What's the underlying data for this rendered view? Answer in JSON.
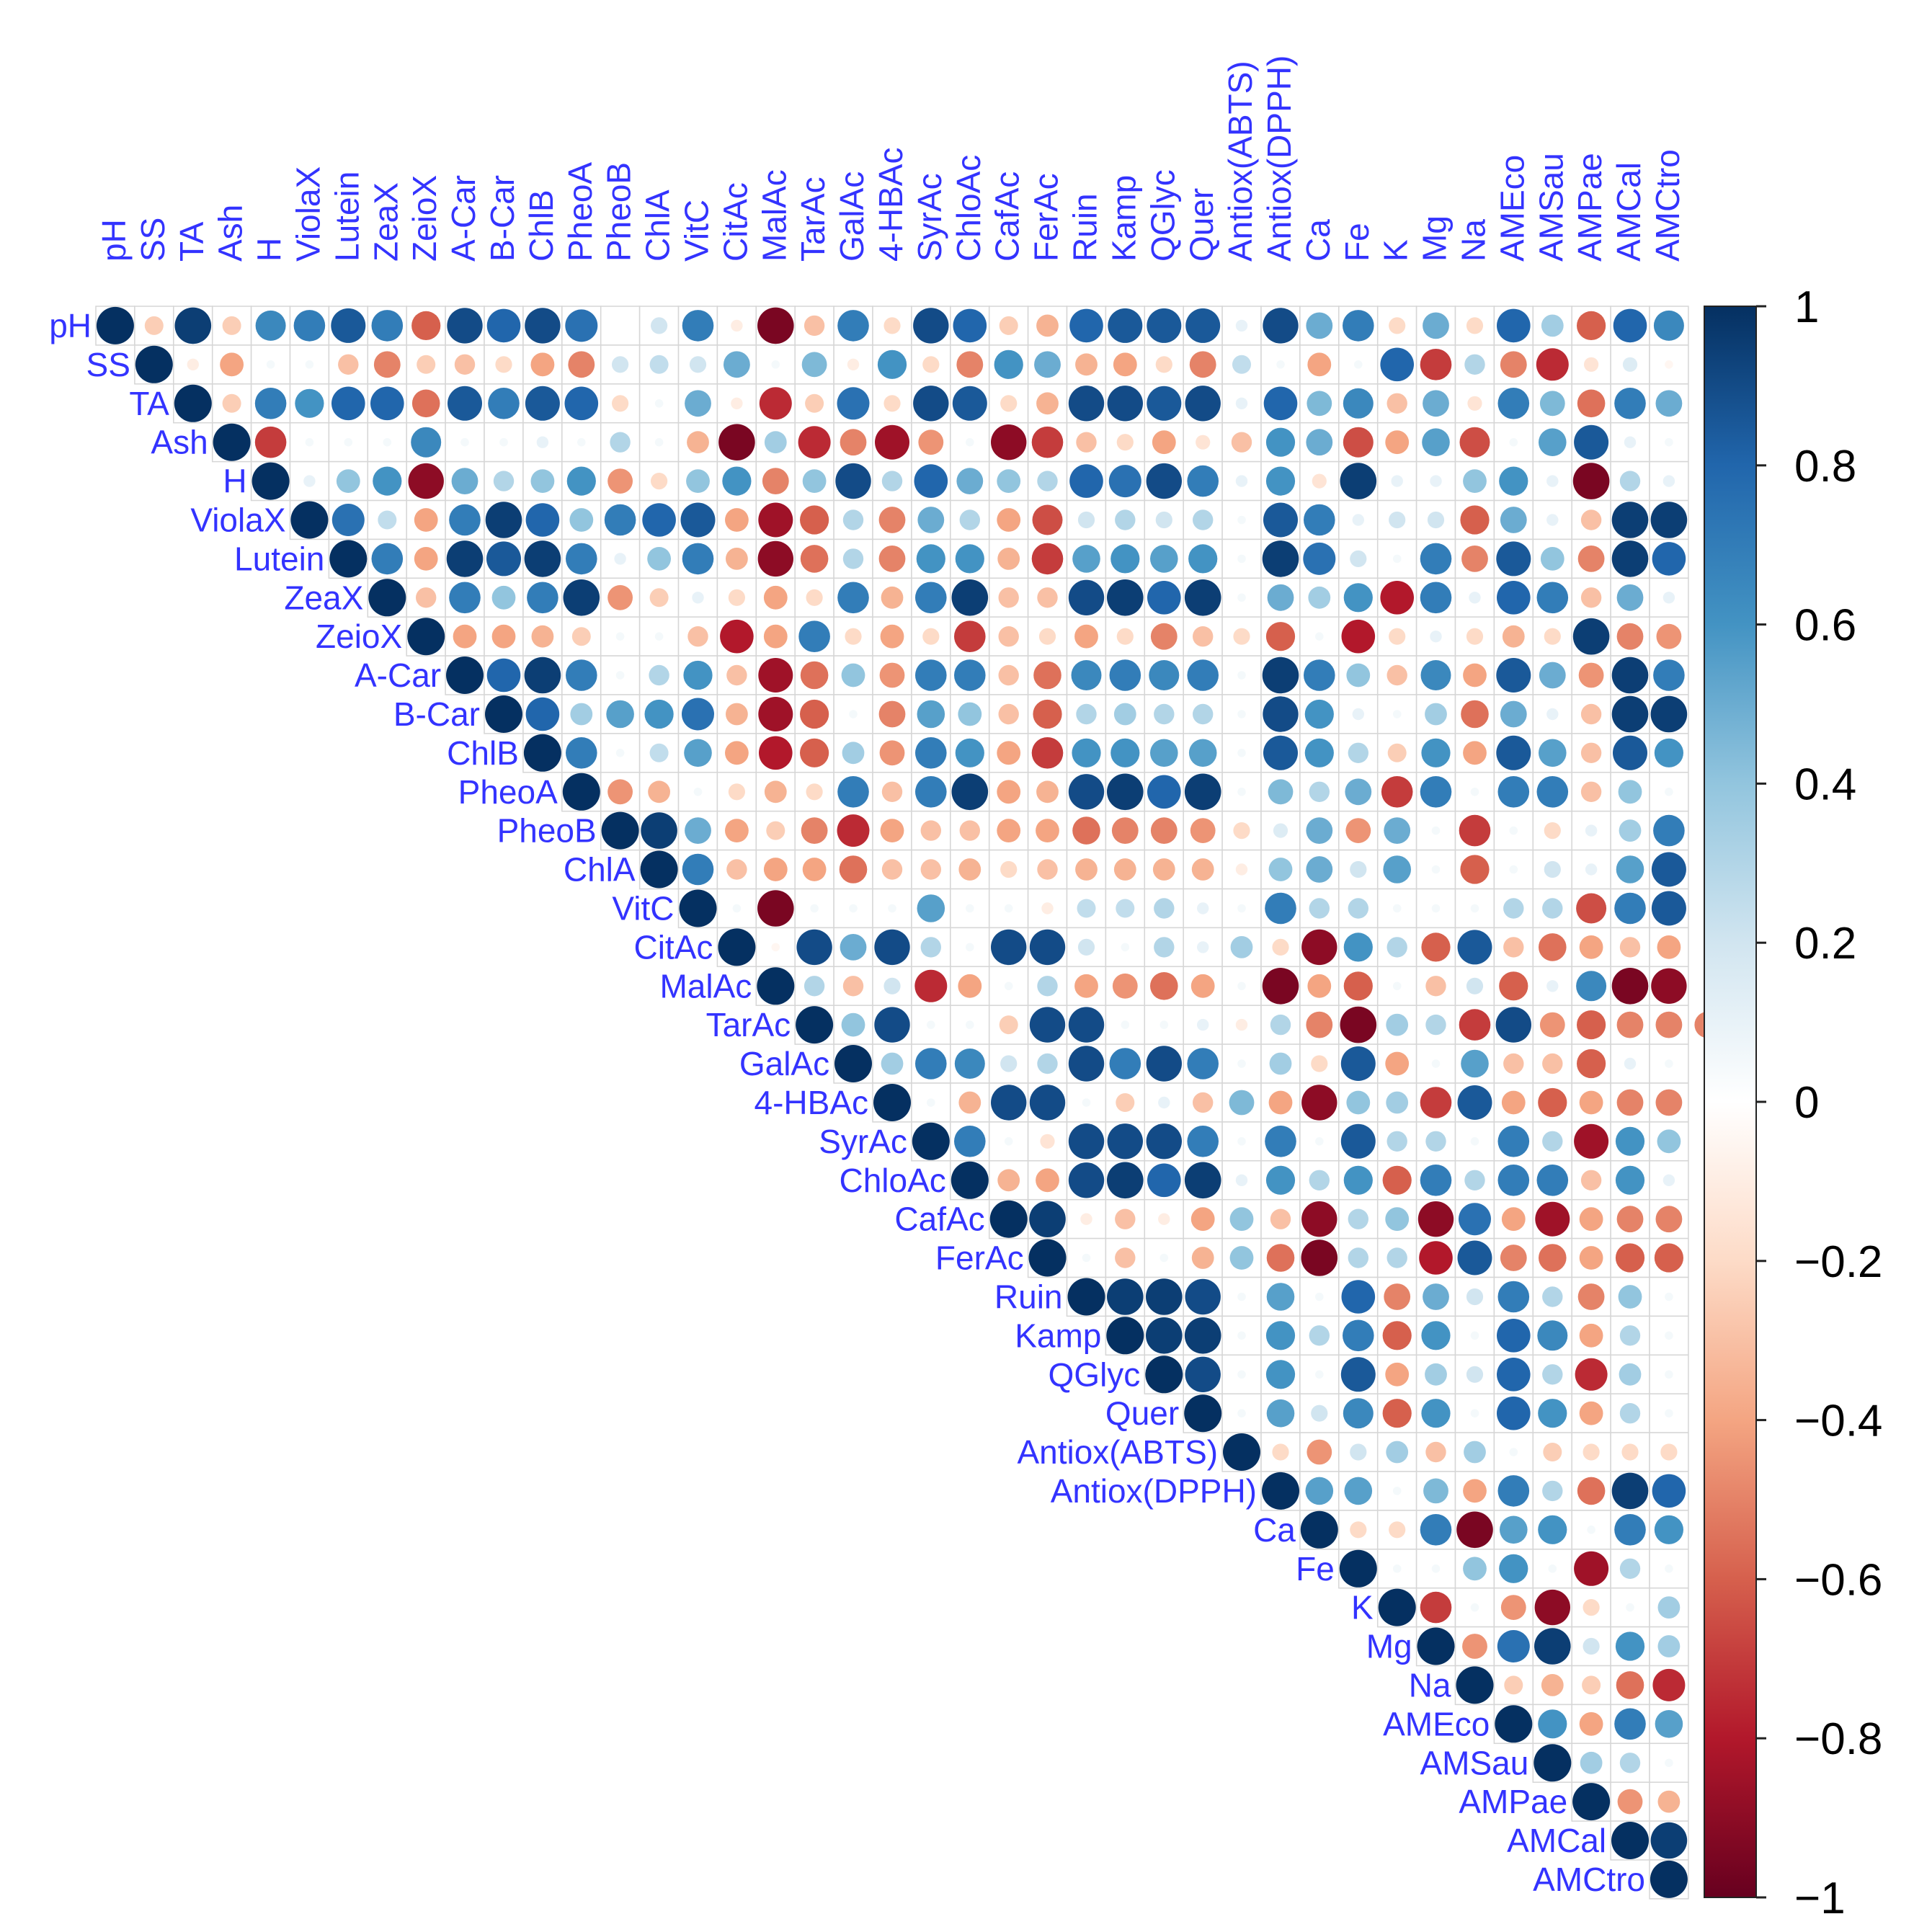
{
  "chart_data": {
    "type": "heatmap",
    "subtype": "correlation-matrix-upper-triangle",
    "variables": [
      "pH",
      "SS",
      "TA",
      "Ash",
      "H",
      "ViolaX",
      "Lutein",
      "ZeaX",
      "ZeioX",
      "A-Car",
      "B-Car",
      "ChlB",
      "PheoA",
      "PheoB",
      "ChlA",
      "VitC",
      "CitAc",
      "MalAc",
      "TarAc",
      "GalAc",
      "4-HBAc",
      "SyrAc",
      "ChloAc",
      "CafAc",
      "FerAc",
      "Ruin",
      "Kamp",
      "QGlyc",
      "Quer",
      "Antiox(ABTS)",
      "Antiox(DPPH)",
      "Ca",
      "Fe",
      "K",
      "Mg",
      "Na",
      "AMEco",
      "AMSau",
      "AMPae",
      "AMCal",
      "AMCtro"
    ],
    "rows": [
      [
        1,
        -0.25,
        0.95,
        -0.25,
        0.65,
        0.7,
        0.85,
        0.7,
        -0.6,
        0.9,
        0.8,
        0.9,
        0.75,
        0,
        0.2,
        0.7,
        -0.1,
        -0.95,
        -0.3,
        0.7,
        -0.2,
        0.9,
        0.8,
        -0.25,
        -0.35,
        0.8,
        0.85,
        0.85,
        0.85,
        0.1,
        0.9,
        0.5,
        0.7,
        -0.2,
        0.5,
        -0.2,
        0.8,
        0.35,
        -0.6,
        0.8,
        0.65
      ],
      [
        1,
        -0.1,
        -0.4,
        0.05,
        0.05,
        -0.3,
        -0.5,
        -0.25,
        -0.3,
        -0.2,
        -0.4,
        -0.5,
        0.2,
        0.25,
        0.2,
        0.5,
        0.05,
        0.45,
        -0.1,
        0.6,
        -0.2,
        -0.5,
        0.6,
        0.5,
        -0.35,
        -0.4,
        -0.2,
        -0.5,
        0.25,
        0.05,
        -0.4,
        0.05,
        0.8,
        -0.7,
        0.3,
        -0.5,
        -0.75,
        -0.15,
        0.15,
        -0.05
      ],
      [
        1,
        -0.25,
        0.7,
        0.6,
        0.8,
        0.8,
        -0.55,
        0.85,
        0.7,
        0.85,
        0.8,
        -0.2,
        0.05,
        0.5,
        -0.1,
        -0.75,
        -0.25,
        0.75,
        -0.2,
        0.9,
        0.85,
        -0.2,
        -0.35,
        0.9,
        0.9,
        0.85,
        0.9,
        0.1,
        0.8,
        0.45,
        0.65,
        -0.3,
        0.5,
        -0.15,
        0.7,
        0.45,
        -0.55,
        0.7,
        0.5
      ],
      [
        1,
        -0.7,
        0.05,
        0.05,
        0.05,
        0.65,
        0.05,
        0.05,
        0.1,
        0.05,
        0.3,
        0.05,
        -0.35,
        -0.95,
        0.35,
        -0.75,
        -0.5,
        -0.85,
        -0.45,
        0.05,
        -0.9,
        -0.7,
        -0.3,
        -0.2,
        -0.4,
        -0.15,
        -0.3,
        0.6,
        0.5,
        -0.65,
        -0.4,
        0.55,
        -0.65,
        0.05,
        0.55,
        0.85,
        0.1,
        0.05
      ],
      [
        1,
        0.1,
        0.4,
        0.6,
        -0.9,
        0.5,
        0.3,
        0.4,
        0.6,
        -0.45,
        -0.2,
        0.4,
        0.6,
        -0.5,
        0.4,
        0.9,
        0.3,
        0.8,
        0.5,
        0.4,
        0.3,
        0.8,
        0.75,
        0.9,
        0.7,
        0.1,
        0.6,
        -0.15,
        0.95,
        0.1,
        0.1,
        0.4,
        0.6,
        0.1,
        -0.95,
        0.3,
        0.1
      ],
      [
        1,
        0.75,
        0.25,
        -0.4,
        0.7,
        0.95,
        0.8,
        0.4,
        0.7,
        0.8,
        0.85,
        -0.4,
        -0.85,
        -0.6,
        0.3,
        -0.5,
        0.5,
        0.3,
        -0.4,
        -0.65,
        0.2,
        0.3,
        0.2,
        0.3,
        0.05,
        0.85,
        0.7,
        0.1,
        0.2,
        0.2,
        -0.6,
        0.5,
        0.1,
        -0.3,
        0.95,
        0.95
      ],
      [
        1,
        0.7,
        -0.4,
        0.95,
        0.85,
        0.95,
        0.7,
        0.1,
        0.4,
        0.7,
        -0.35,
        -0.9,
        -0.55,
        0.3,
        -0.5,
        0.6,
        0.6,
        -0.35,
        -0.7,
        0.55,
        0.6,
        0.55,
        0.6,
        0.05,
        0.95,
        0.75,
        0.2,
        0.05,
        0.7,
        -0.5,
        0.85,
        0.4,
        -0.5,
        0.95,
        0.8
      ],
      [
        1,
        -0.3,
        0.7,
        0.4,
        0.7,
        0.95,
        -0.45,
        -0.25,
        0.1,
        -0.2,
        -0.4,
        -0.2,
        0.7,
        -0.35,
        0.7,
        0.95,
        -0.3,
        -0.3,
        0.9,
        0.95,
        0.8,
        0.95,
        0.05,
        0.5,
        0.35,
        0.6,
        -0.8,
        0.7,
        0.1,
        0.8,
        0.7,
        -0.3,
        0.5,
        0.1
      ],
      [
        1,
        -0.4,
        -0.4,
        -0.35,
        -0.25,
        0.05,
        0.05,
        -0.3,
        -0.8,
        -0.4,
        0.7,
        -0.2,
        -0.4,
        -0.2,
        -0.7,
        -0.3,
        -0.2,
        -0.4,
        -0.2,
        -0.5,
        -0.3,
        -0.2,
        -0.6,
        0.05,
        -0.8,
        -0.2,
        0.1,
        -0.2,
        -0.35,
        -0.2,
        0.95,
        -0.5,
        -0.45
      ],
      [
        1,
        0.8,
        0.95,
        0.7,
        0.05,
        0.3,
        0.6,
        -0.3,
        -0.85,
        -0.55,
        0.4,
        -0.45,
        0.7,
        0.7,
        -0.3,
        -0.55,
        0.65,
        0.7,
        0.65,
        0.7,
        0.05,
        0.95,
        0.7,
        0.4,
        -0.3,
        0.65,
        -0.4,
        0.85,
        0.5,
        -0.45,
        0.95,
        0.7
      ],
      [
        1,
        0.8,
        0.35,
        0.55,
        0.6,
        0.75,
        -0.35,
        -0.85,
        -0.6,
        0.05,
        -0.5,
        0.55,
        0.4,
        -0.3,
        -0.6,
        0.3,
        0.35,
        0.3,
        0.3,
        0.05,
        0.9,
        0.6,
        0.1,
        0.05,
        0.35,
        -0.55,
        0.5,
        0.1,
        -0.3,
        0.95,
        0.95
      ],
      [
        1,
        0.7,
        0.05,
        0.25,
        0.55,
        -0.4,
        -0.8,
        -0.6,
        0.35,
        -0.45,
        0.7,
        0.6,
        -0.4,
        -0.7,
        0.6,
        0.6,
        0.55,
        0.55,
        0.05,
        0.85,
        0.6,
        0.3,
        -0.25,
        0.6,
        -0.4,
        0.85,
        0.55,
        -0.3,
        0.85,
        0.6
      ],
      [
        1,
        -0.45,
        -0.35,
        0.05,
        -0.2,
        -0.35,
        -0.2,
        0.7,
        -0.3,
        0.7,
        0.95,
        -0.4,
        -0.35,
        0.9,
        0.95,
        0.8,
        0.95,
        0.05,
        0.45,
        0.3,
        0.5,
        -0.7,
        0.7,
        0.05,
        0.7,
        0.7,
        -0.3,
        0.4,
        0.05
      ],
      [
        1,
        0.95,
        0.5,
        -0.4,
        -0.25,
        -0.5,
        -0.75,
        -0.4,
        -0.3,
        -0.3,
        -0.4,
        -0.4,
        -0.55,
        -0.5,
        -0.5,
        -0.45,
        -0.2,
        0.15,
        0.5,
        -0.45,
        0.5,
        0.05,
        -0.7,
        0.05,
        -0.2,
        0.1,
        0.35,
        0.7
      ],
      [
        1,
        0.7,
        -0.3,
        -0.4,
        -0.4,
        -0.55,
        -0.3,
        -0.3,
        -0.35,
        -0.2,
        -0.3,
        -0.35,
        -0.35,
        -0.35,
        -0.35,
        -0.1,
        0.4,
        0.5,
        0.2,
        0.55,
        0.05,
        -0.6,
        0.05,
        0.2,
        0.1,
        0.55,
        0.85
      ],
      [
        1,
        0.05,
        -0.95,
        0.05,
        0.05,
        0.05,
        0.55,
        0.05,
        0.05,
        -0.1,
        0.25,
        0.25,
        0.3,
        0.1,
        0.05,
        0.7,
        0.3,
        0.3,
        0.05,
        0.05,
        0.05,
        0.3,
        0.3,
        -0.65,
        0.7,
        0.85
      ],
      [
        1,
        -0.05,
        0.9,
        0.5,
        0.9,
        0.3,
        0.05,
        0.9,
        0.9,
        0.2,
        0.05,
        0.3,
        0.1,
        0.35,
        -0.2,
        -0.9,
        0.6,
        0.3,
        -0.6,
        0.85,
        -0.3,
        -0.55,
        -0.4,
        -0.3,
        -0.4
      ],
      [
        1,
        0.3,
        -0.3,
        0.2,
        -0.75,
        -0.4,
        0.05,
        0.3,
        -0.4,
        -0.45,
        -0.55,
        -0.4,
        0.05,
        -0.95,
        -0.4,
        -0.6,
        0.05,
        -0.3,
        0.2,
        -0.6,
        0.1,
        0.65,
        -0.95,
        -0.9
      ],
      [
        1,
        0.4,
        0.9,
        0.05,
        0.05,
        -0.25,
        0.9,
        0.9,
        0.05,
        0.05,
        0.1,
        -0.1,
        0.3,
        -0.5,
        -0.95,
        0.35,
        0.3,
        -0.7,
        0.9,
        -0.45,
        -0.6,
        -0.5,
        -0.5,
        -0.5
      ],
      [
        1,
        0.35,
        0.7,
        0.65,
        0.2,
        0.3,
        0.9,
        0.7,
        0.9,
        0.7,
        0.05,
        0.35,
        -0.2,
        0.85,
        -0.4,
        0.05,
        0.55,
        -0.3,
        -0.3,
        -0.6,
        0.1,
        0.05
      ],
      [
        1,
        0.05,
        -0.35,
        0.9,
        0.9,
        0.05,
        -0.25,
        0.1,
        -0.3,
        0.45,
        -0.4,
        -0.9,
        0.4,
        0.35,
        -0.7,
        0.85,
        -0.4,
        -0.6,
        -0.4,
        -0.5,
        -0.5
      ],
      [
        1,
        0.7,
        0.05,
        -0.15,
        0.9,
        0.9,
        0.9,
        0.7,
        0.05,
        0.7,
        0.05,
        0.85,
        0.3,
        0.3,
        0.05,
        0.7,
        0.3,
        -0.85,
        0.6,
        0.4
      ],
      [
        1,
        -0.35,
        -0.4,
        0.9,
        0.95,
        0.8,
        0.95,
        0.1,
        0.6,
        0.3,
        0.6,
        -0.6,
        0.7,
        0.3,
        0.7,
        0.7,
        -0.3,
        0.6,
        0.1
      ],
      [
        1,
        0.95,
        -0.1,
        -0.3,
        -0.1,
        -0.4,
        0.4,
        -0.3,
        -0.9,
        0.3,
        0.4,
        -0.9,
        0.75,
        -0.4,
        -0.85,
        -0.4,
        -0.5,
        -0.5
      ],
      [
        1,
        0.05,
        -0.3,
        0.05,
        -0.35,
        0.4,
        -0.55,
        -0.95,
        0.3,
        0.3,
        -0.8,
        0.85,
        -0.5,
        -0.55,
        -0.4,
        -0.6,
        -0.6
      ],
      [
        1,
        0.95,
        0.95,
        0.9,
        0.05,
        0.55,
        0.05,
        0.8,
        -0.5,
        0.5,
        0.2,
        0.7,
        0.3,
        -0.5,
        0.4,
        0.05
      ],
      [
        1,
        0.95,
        0.95,
        0.05,
        0.6,
        0.3,
        0.7,
        -0.6,
        0.6,
        0.05,
        0.8,
        0.65,
        -0.4,
        0.3,
        0.05
      ],
      [
        1,
        0.9,
        0.05,
        0.6,
        0.05,
        0.85,
        -0.4,
        0.35,
        0.2,
        0.8,
        0.3,
        -0.75,
        0.35,
        0.05
      ],
      [
        1,
        0.05,
        0.55,
        0.2,
        0.65,
        -0.6,
        0.6,
        0.05,
        0.8,
        0.6,
        -0.4,
        0.3,
        0.05
      ],
      [
        1,
        -0.2,
        -0.45,
        0.2,
        0.35,
        -0.3,
        0.35,
        0.05,
        -0.25,
        -0.2,
        -0.2,
        -0.2
      ],
      [
        1,
        0.55,
        0.55,
        0.05,
        0.45,
        -0.4,
        0.7,
        0.3,
        -0.55,
        0.95,
        0.8
      ],
      [
        1,
        -0.2,
        -0.2,
        0.7,
        -0.95,
        0.55,
        0.6,
        0.05,
        0.7,
        0.6
      ],
      [
        1,
        0.05,
        0.05,
        0.4,
        0.6,
        0.05,
        -0.85,
        0.3,
        0.05
      ],
      [
        1,
        -0.7,
        0.05,
        -0.45,
        -0.9,
        -0.2,
        0.05,
        0.35
      ],
      [
        1,
        -0.45,
        0.75,
        0.95,
        0.2,
        0.6,
        0.35
      ],
      [
        1,
        -0.25,
        -0.35,
        -0.25,
        -0.55,
        -0.75
      ],
      [
        1,
        0.6,
        -0.4,
        0.7,
        0.55
      ],
      [
        1,
        0.35,
        0.3,
        0.05
      ],
      [
        1,
        -0.45,
        -0.35
      ],
      [
        1,
        0.95
      ],
      [
        1
      ]
    ],
    "colorbar": {
      "min": -1,
      "max": 1,
      "tick_labels": [
        "1",
        "0.8",
        "0.6",
        "0.4",
        "0.2",
        "0",
        "−0.2",
        "−0.4",
        "−0.6",
        "−0.8",
        "−1"
      ]
    },
    "colors": {
      "negative": "#67001f",
      "neutral": "#ffffff",
      "positive": "#053061",
      "label": "#3333ff",
      "grid": "#d6d6d6"
    }
  }
}
